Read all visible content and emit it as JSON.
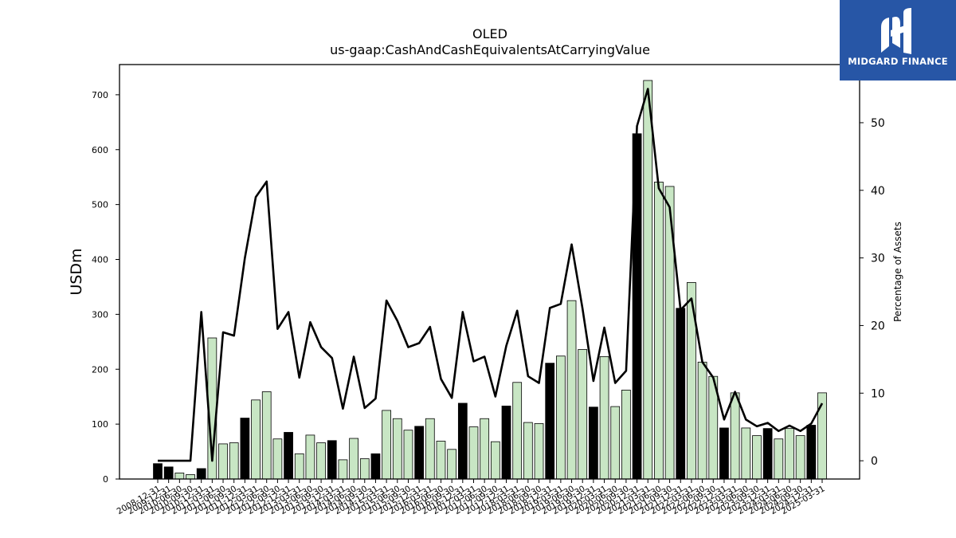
{
  "logo": {
    "text": "MIDGARD FINANCE",
    "bg_color": "#2756a6"
  },
  "chart_data": {
    "type": "bar+line",
    "title": "OLED",
    "subtitle": "us-gaap:CashAndCashEquivalentsAtCarryingValue",
    "ylabel": "USDm",
    "y2label": "Percentage of Assets",
    "ylim": [
      0,
      755
    ],
    "y2lim": [
      -2.7,
      58.6
    ],
    "yticks": [
      0,
      100,
      200,
      300,
      400,
      500,
      600,
      700
    ],
    "y2ticks": [
      0,
      10,
      20,
      30,
      40,
      50
    ],
    "bar_colors": {
      "annual": "#000000",
      "quarterly": "#c8e6c4"
    },
    "line_color": "#000000",
    "categories": [
      "2008-12-31",
      "2009-12-31",
      "2010-06-30",
      "2010-09-30",
      "2010-12-31",
      "2011-03-31",
      "2011-06-30",
      "2011-09-30",
      "2011-12-31",
      "2012-03-31",
      "2012-06-30",
      "2012-09-30",
      "2012-12-31",
      "2013-03-31",
      "2013-06-30",
      "2013-09-30",
      "2013-12-31",
      "2014-03-31",
      "2014-06-30",
      "2014-09-30",
      "2014-12-31",
      "2015-03-31",
      "2015-06-30",
      "2015-09-30",
      "2015-12-31",
      "2016-03-31",
      "2016-06-30",
      "2016-09-30",
      "2016-12-31",
      "2017-03-31",
      "2017-06-30",
      "2017-09-30",
      "2017-12-31",
      "2018-03-31",
      "2018-06-30",
      "2018-09-30",
      "2018-12-31",
      "2019-03-31",
      "2019-06-30",
      "2019-09-30",
      "2019-12-31",
      "2020-03-31",
      "2020-06-30",
      "2020-09-30",
      "2020-12-31",
      "2021-03-31",
      "2021-06-30",
      "2021-09-30",
      "2021-12-31",
      "2022-03-31",
      "2022-06-30",
      "2022-09-30",
      "2022-12-31",
      "2023-03-31",
      "2023-06-30",
      "2023-09-30",
      "2023-12-31",
      "2024-03-31",
      "2024-06-30",
      "2024-09-30",
      "2024-12-31",
      "2025-03-31"
    ],
    "values": [
      28,
      22,
      11,
      8,
      19,
      257,
      64,
      66,
      111,
      144,
      159,
      73,
      85,
      46,
      80,
      66,
      70,
      35,
      74,
      37,
      46,
      125,
      110,
      89,
      96,
      110,
      69,
      54,
      138,
      95,
      110,
      68,
      133,
      176,
      103,
      101,
      211,
      224,
      325,
      236,
      131,
      223,
      132,
      162,
      629,
      726,
      541,
      533,
      311,
      358,
      213,
      187,
      93,
      157,
      93,
      79,
      92,
      73,
      92,
      79,
      98,
      157
    ],
    "annual_flags": [
      1,
      1,
      0,
      0,
      1,
      0,
      0,
      0,
      1,
      0,
      0,
      0,
      1,
      0,
      0,
      0,
      1,
      0,
      0,
      0,
      1,
      0,
      0,
      0,
      1,
      0,
      0,
      0,
      1,
      0,
      0,
      0,
      1,
      0,
      0,
      0,
      1,
      0,
      0,
      0,
      1,
      0,
      0,
      0,
      1,
      0,
      0,
      0,
      1,
      0,
      0,
      0,
      1,
      0,
      0,
      0,
      1,
      0,
      0,
      0,
      1,
      0
    ],
    "pct_assets": [
      0,
      0,
      0,
      0,
      22,
      0,
      19,
      18.5,
      30,
      39,
      41.3,
      19.5,
      22,
      12.3,
      20.5,
      16.8,
      15.2,
      7.7,
      15.4,
      7.8,
      9.2,
      23.7,
      20.7,
      16.8,
      17.4,
      19.8,
      12.1,
      9.3,
      22,
      14.7,
      15.4,
      9.5,
      17,
      22.2,
      12.5,
      11.5,
      22.6,
      23.2,
      32,
      22.5,
      11.8,
      19.7,
      11.5,
      13.3,
      49.5,
      55,
      40.3,
      37.5,
      22.3,
      24,
      14.6,
      12.3,
      6.1,
      10.2,
      6.1,
      5.1,
      5.6,
      4.4,
      5.2,
      4.4,
      5.5,
      8.5
    ]
  }
}
